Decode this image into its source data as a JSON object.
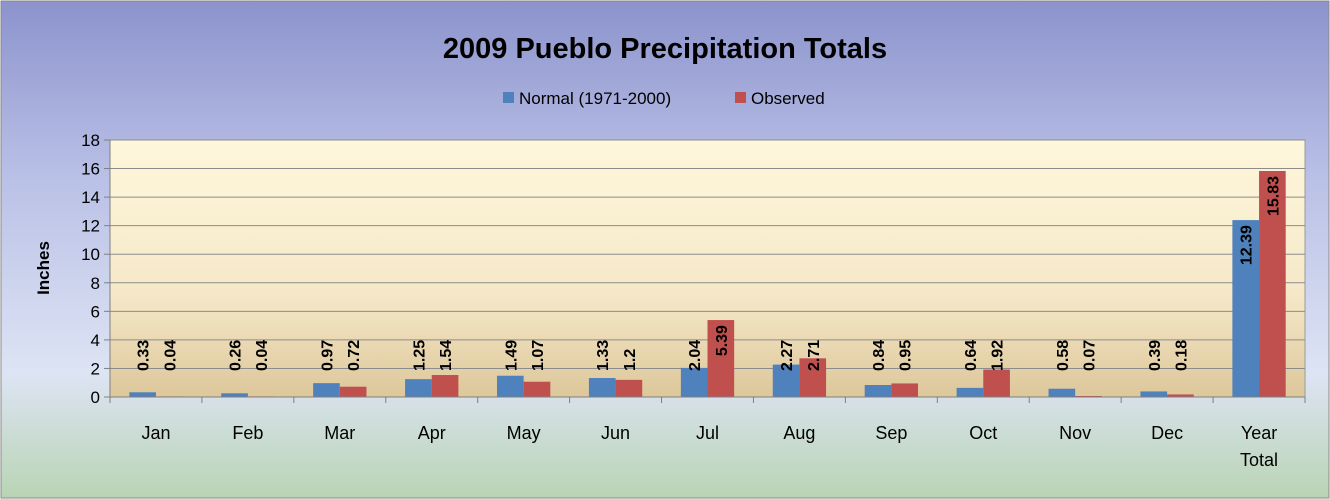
{
  "chart_data": {
    "type": "bar",
    "title": "2009 Pueblo Precipitation Totals",
    "ylabel": "Inches",
    "xlabel": "",
    "categories": [
      "Jan",
      "Feb",
      "Mar",
      "Apr",
      "May",
      "Jun",
      "Jul",
      "Aug",
      "Sep",
      "Oct",
      "Nov",
      "Dec",
      "Year Total"
    ],
    "series": [
      {
        "name": "Normal (1971-2000)",
        "color": "#4F81BD",
        "values": [
          0.33,
          0.26,
          0.97,
          1.25,
          1.49,
          1.33,
          2.04,
          2.27,
          0.84,
          0.64,
          0.58,
          0.39,
          12.39
        ],
        "labels": [
          "0.33",
          "0.26",
          "0.97",
          "1.25",
          "1.49",
          "1.33",
          "2.04",
          "2.27",
          "0.84",
          "0.64",
          "0.58",
          "0.39",
          "12.39"
        ]
      },
      {
        "name": "Observed",
        "color": "#C0504D",
        "values": [
          0.04,
          0.04,
          0.72,
          1.54,
          1.07,
          1.2,
          5.39,
          2.71,
          0.95,
          1.92,
          0.07,
          0.18,
          15.83
        ],
        "labels": [
          "0.04",
          "0.04",
          "0.72",
          "1.54",
          "1.07",
          "1.2",
          "5.39",
          "2.71",
          "0.95",
          "1.92",
          "0.07",
          "0.18",
          "15.83"
        ]
      }
    ],
    "ylim": [
      0,
      18
    ],
    "yticks": [
      0,
      2,
      4,
      6,
      8,
      10,
      12,
      14,
      16,
      18
    ],
    "grid": true,
    "legend_position": "top"
  }
}
